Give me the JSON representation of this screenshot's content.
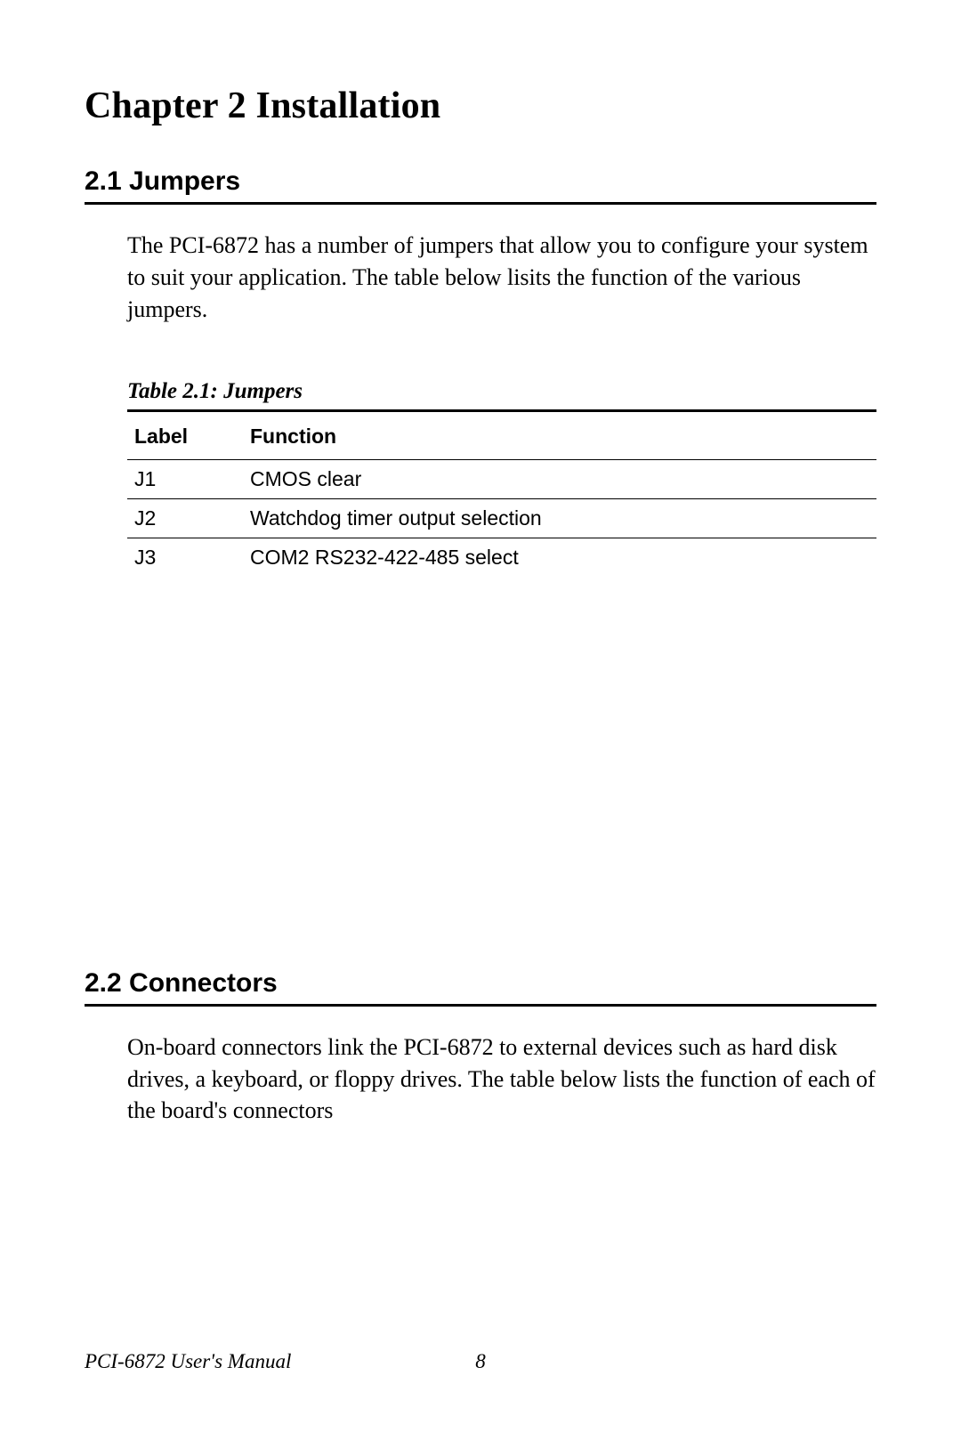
{
  "chapter": {
    "title": "Chapter 2  Installation"
  },
  "section21": {
    "heading": "2.1  Jumpers",
    "paragraph": "The PCI-6872 has a number of jumpers that allow you to configure your system to suit your application. The table below lisits the function of the various jumpers."
  },
  "table21": {
    "caption": "Table 2.1: Jumpers",
    "columns": [
      "Label",
      "Function"
    ],
    "rows": [
      {
        "label": "J1",
        "function": "CMOS clear"
      },
      {
        "label": "J2",
        "function": "Watchdog timer output selection"
      },
      {
        "label": "J3",
        "function": "COM2 RS232-422-485 select"
      }
    ]
  },
  "section22": {
    "heading": "2.2  Connectors",
    "paragraph": "On-board connectors link the PCI-6872 to external devices such as hard disk drives, a keyboard, or floppy drives. The table below lists the function of each of the board's connectors"
  },
  "footer": {
    "manual": "PCI-6872 User's Manual",
    "page": "8"
  }
}
